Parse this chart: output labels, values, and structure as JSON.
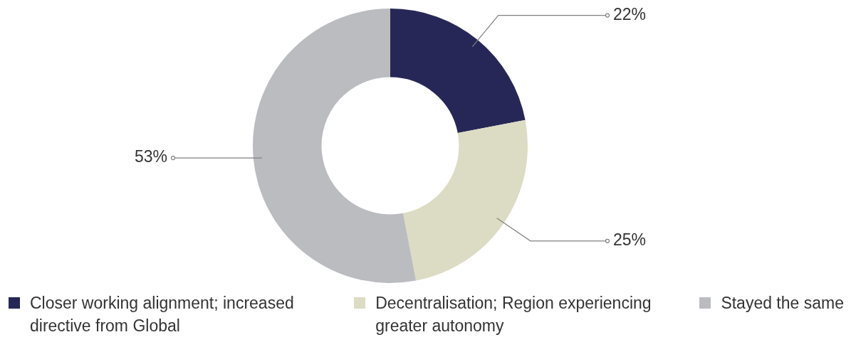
{
  "chart_data": {
    "type": "donut",
    "categories": [
      "Closer working alignment; increased directive from Global",
      "Decentralisation; Region experiencing greater autonomy",
      "Stayed the same"
    ],
    "values": [
      22,
      25,
      53
    ],
    "colors": [
      "#272757",
      "#dcdcc4",
      "#bbbcc0"
    ],
    "value_labels": [
      "22%",
      "25%",
      "53%"
    ],
    "legend": "bottom"
  }
}
